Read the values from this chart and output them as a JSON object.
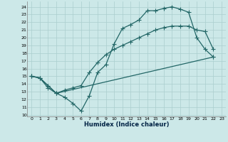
{
  "xlabel": "Humidex (Indice chaleur)",
  "xlim": [
    -0.5,
    23.5
  ],
  "ylim": [
    9.8,
    24.7
  ],
  "xticks": [
    0,
    1,
    2,
    3,
    4,
    5,
    6,
    7,
    8,
    9,
    10,
    11,
    12,
    13,
    14,
    15,
    16,
    17,
    18,
    19,
    20,
    21,
    22,
    23
  ],
  "yticks": [
    10,
    11,
    12,
    13,
    14,
    15,
    16,
    17,
    18,
    19,
    20,
    21,
    22,
    23,
    24
  ],
  "bg_color": "#cce8e8",
  "grid_color": "#aacece",
  "line_color": "#226666",
  "curve1_x": [
    0,
    1,
    2,
    3,
    4,
    5,
    6,
    7,
    8,
    9,
    10,
    11,
    12,
    13,
    14,
    15,
    16,
    17,
    18,
    19,
    20,
    21,
    22
  ],
  "curve1_y": [
    15.0,
    14.8,
    13.8,
    12.8,
    12.3,
    11.5,
    10.5,
    12.5,
    15.5,
    16.5,
    19.2,
    21.2,
    21.7,
    22.3,
    23.5,
    23.5,
    23.8,
    24.0,
    23.7,
    23.3,
    20.0,
    18.5,
    17.5
  ],
  "curve2_x": [
    0,
    1,
    2,
    3,
    4,
    5,
    6,
    7,
    8,
    9,
    10,
    11,
    12,
    13,
    14,
    15,
    16,
    17,
    18,
    19,
    20,
    21,
    22
  ],
  "curve2_y": [
    15.0,
    14.8,
    13.5,
    12.8,
    13.2,
    13.5,
    13.8,
    15.5,
    16.8,
    17.8,
    18.5,
    19.0,
    19.5,
    20.0,
    20.5,
    21.0,
    21.3,
    21.5,
    21.5,
    21.5,
    21.0,
    20.8,
    18.5
  ],
  "curve3_x": [
    0,
    1,
    2,
    3,
    22
  ],
  "curve3_y": [
    15.0,
    14.8,
    13.8,
    12.8,
    17.5
  ]
}
